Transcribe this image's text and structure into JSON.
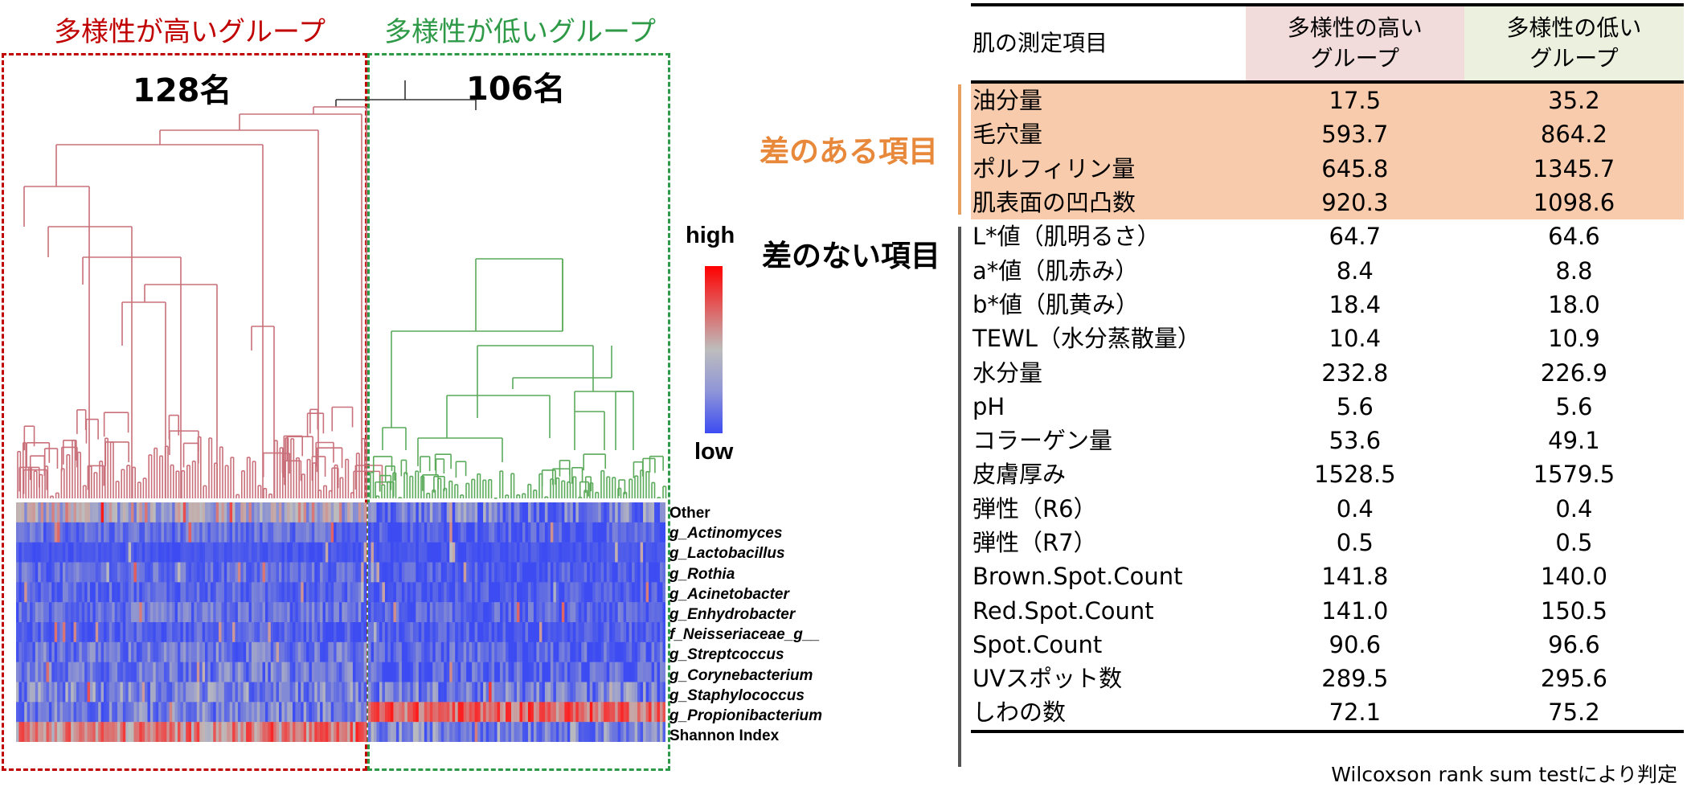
{
  "left_panel": {
    "high_group_title": "多様性が高いグループ",
    "low_group_title": "多様性が低いグループ",
    "high_group_count": "128名",
    "low_group_count": "106名",
    "colors": {
      "high_group": "#c00000",
      "low_group": "#2e9a47",
      "high_dendrogram": "#c9707a",
      "low_dendrogram": "#5aaa5a",
      "root_dendrogram": "#333333",
      "heat_high": "#ff1a1a",
      "heat_mid": "#bdbdbd",
      "heat_low": "#3c4cf2"
    },
    "legend": {
      "high_label": "high",
      "low_label": "low"
    },
    "taxa": [
      "Other",
      "g_Actinomyces",
      "g_Lactobacillus",
      "g_Rothia",
      "g_Acinetobacter",
      "g_Enhydrobacter",
      "f_Neisseriaceae_g__",
      "g_Streptcoccus",
      "g_Corynebacterium",
      "g_Staphylococcus",
      "g_Propionibacterium",
      "Shannon Index"
    ]
  },
  "table": {
    "header": {
      "item": "肌の測定項目",
      "high_group_line1": "多様性の高い",
      "high_group_line2": "グループ",
      "low_group_line1": "多様性の低い",
      "low_group_line2": "グループ"
    },
    "section_diff_label": "差のある項目",
    "section_nodiff_label": "差のない項目",
    "colors": {
      "diff_label": "#e8883a",
      "diff_row_bg": "#f8cbad",
      "header_high_bg": "#f2dcdb",
      "header_low_bg": "#ebf1de"
    },
    "rows_diff": [
      {
        "name": "油分量",
        "high": "17.5",
        "low": "35.2"
      },
      {
        "name": "毛穴量",
        "high": "593.7",
        "low": "864.2"
      },
      {
        "name": "ポルフィリン量",
        "high": "645.8",
        "low": "1345.7"
      },
      {
        "name": "肌表面の凹凸数",
        "high": "920.3",
        "low": "1098.6"
      }
    ],
    "rows_nodiff": [
      {
        "name": "L*値（肌明るさ）",
        "high": "64.7",
        "low": "64.6"
      },
      {
        "name": "a*値（肌赤み）",
        "high": "8.4",
        "low": "8.8"
      },
      {
        "name": "b*値（肌黄み）",
        "high": "18.4",
        "low": "18.0"
      },
      {
        "name": "TEWL（水分蒸散量）",
        "high": "10.4",
        "low": "10.9"
      },
      {
        "name": "水分量",
        "high": "232.8",
        "low": "226.9"
      },
      {
        "name": "pH",
        "high": "5.6",
        "low": "5.6"
      },
      {
        "name": "コラーゲン量",
        "high": "53.6",
        "low": "49.1"
      },
      {
        "name": "皮膚厚み",
        "high": "1528.5",
        "low": "1579.5"
      },
      {
        "name": "弾性（R6）",
        "high": "0.4",
        "low": "0.4"
      },
      {
        "name": "弾性（R7）",
        "high": "0.5",
        "low": "0.5"
      },
      {
        "name": "Brown.Spot.Count",
        "high": "141.8",
        "low": "140.0"
      },
      {
        "name": "Red.Spot.Count",
        "high": "141.0",
        "low": "150.5"
      },
      {
        "name": "Spot.Count",
        "high": "90.6",
        "low": "96.6"
      },
      {
        "name": "UVスポット数",
        "high": "289.5",
        "low": "295.6"
      },
      {
        "name": "しわの数",
        "high": "72.1",
        "low": "75.2"
      }
    ],
    "footnote": "Wilcoxson rank sum testにより判定"
  },
  "chart_data": [
    {
      "type": "heatmap",
      "title": "Hierarchical clustering of skin microbiome (genus-level relative abundance) with dendrogram",
      "groups": [
        {
          "name": "多様性が高いグループ",
          "n": 128
        },
        {
          "name": "多様性が低いグループ",
          "n": 106
        }
      ],
      "rows": [
        "Other",
        "g_Actinomyces",
        "g_Lactobacillus",
        "g_Rothia",
        "g_Acinetobacter",
        "g_Enhydrobacter",
        "f_Neisseriaceae_g__",
        "g_Streptcoccus",
        "g_Corynebacterium",
        "g_Staphylococcus",
        "g_Propionibacterium",
        "Shannon Index"
      ],
      "color_scale": {
        "low": "#3c4cf2",
        "mid": "#bdbdbd",
        "high": "#ff1a1a",
        "low_label": "low",
        "high_label": "high"
      },
      "qualitative_summary": {
        "high_diversity_group": "Shannon Index mostly high (red); Propionibacterium mostly low-mid; Other mixed; scattered highs in Actinomyces, Rothia, Acinetobacter, Corynebacterium, Staphylococcus",
        "low_diversity_group": "g_Propionibacterium strongly high (red); Shannon Index low (blue); most other taxa low (blue)"
      }
    },
    {
      "type": "table",
      "title": "肌の測定項目",
      "columns": [
        "肌の測定項目",
        "多様性の高いグループ",
        "多様性の低いグループ"
      ],
      "significant_rows": [
        [
          "油分量",
          17.5,
          35.2
        ],
        [
          "毛穴量",
          593.7,
          864.2
        ],
        [
          "ポルフィリン量",
          645.8,
          1345.7
        ],
        [
          "肌表面の凹凸数",
          920.3,
          1098.6
        ]
      ],
      "nonsignificant_rows": [
        [
          "L*値（肌明るさ）",
          64.7,
          64.6
        ],
        [
          "a*値（肌赤み）",
          8.4,
          8.8
        ],
        [
          "b*値（肌黄み）",
          18.4,
          18.0
        ],
        [
          "TEWL（水分蒸散量）",
          10.4,
          10.9
        ],
        [
          "水分量",
          232.8,
          226.9
        ],
        [
          "pH",
          5.6,
          5.6
        ],
        [
          "コラーゲン量",
          53.6,
          49.1
        ],
        [
          "皮膚厚み",
          1528.5,
          1579.5
        ],
        [
          "弾性（R6）",
          0.4,
          0.4
        ],
        [
          "弾性（R7）",
          0.5,
          0.5
        ],
        [
          "Brown.Spot.Count",
          141.8,
          140.0
        ],
        [
          "Red.Spot.Count",
          141.0,
          150.5
        ],
        [
          "Spot.Count",
          90.6,
          96.6
        ],
        [
          "UVスポット数",
          289.5,
          295.6
        ],
        [
          "しわの数",
          72.1,
          75.2
        ]
      ],
      "footnote": "Wilcoxson rank sum testにより判定"
    }
  ]
}
